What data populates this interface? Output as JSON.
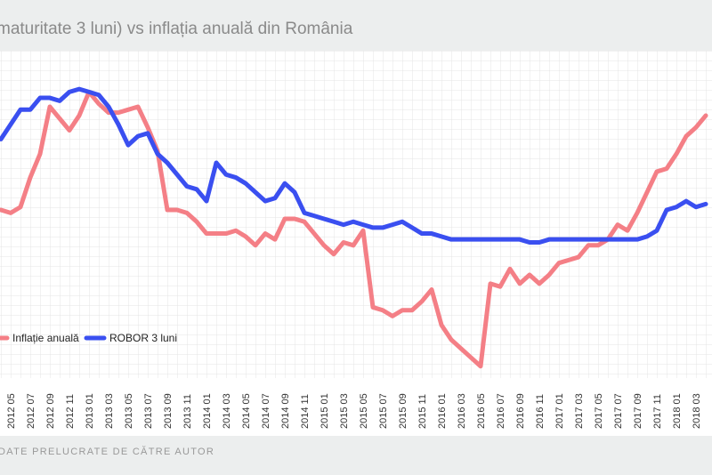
{
  "chart_data": {
    "type": "line",
    "title": "maturitate 3 luni) vs inflația anuală din România",
    "source": "DATE PRELUCRATE DE CĂTRE AUTOR",
    "categories": [
      null,
      "2012 05",
      null,
      "2012 07",
      null,
      "2012 09",
      null,
      "2012 11",
      null,
      "2013 01",
      null,
      "2013 03",
      null,
      "2013 05",
      null,
      "2013 07",
      null,
      "2013 09",
      null,
      "2013 11",
      null,
      "2014 01",
      null,
      "2014 03",
      null,
      "2014 05",
      null,
      "2014 07",
      null,
      "2014 09",
      null,
      "2014 11",
      null,
      "2015 01",
      null,
      "2015 03",
      null,
      "2015 05",
      null,
      "2015 07",
      null,
      "2015 09",
      null,
      "2015 11",
      null,
      "2016 01",
      null,
      "2016 03",
      null,
      "2016 05",
      null,
      "2016 07",
      null,
      "2016 09",
      null,
      "2016 11",
      null,
      "2017 01",
      null,
      "2017 03",
      null,
      "2017 05",
      null,
      "2017 07",
      null,
      "2017 09",
      null,
      "2017 11",
      null,
      "2018 01",
      null,
      "2018 03",
      null
    ],
    "series": [
      {
        "name": "Inflație anuală",
        "color": "#f47f86",
        "values": [
          1.9,
          1.8,
          2.0,
          3.0,
          3.8,
          5.4,
          5.0,
          4.6,
          5.1,
          5.9,
          5.5,
          5.2,
          5.2,
          5.3,
          5.4,
          4.7,
          3.9,
          1.9,
          1.9,
          1.8,
          1.5,
          1.1,
          1.1,
          1.1,
          1.2,
          1.0,
          0.7,
          1.1,
          0.9,
          1.6,
          1.6,
          1.5,
          1.1,
          0.7,
          0.4,
          0.8,
          0.7,
          1.2,
          -1.4,
          -1.5,
          -1.7,
          -1.5,
          -1.5,
          -1.2,
          -0.8,
          -2.0,
          -2.5,
          -2.8,
          -3.1,
          -3.4,
          -0.6,
          -0.7,
          -0.1,
          -0.6,
          -0.3,
          -0.6,
          -0.3,
          0.1,
          0.2,
          0.3,
          0.7,
          0.7,
          0.9,
          1.4,
          1.2,
          1.8,
          2.5,
          3.2,
          3.3,
          3.8,
          4.4,
          4.7,
          5.1
        ]
      },
      {
        "name": "ROBOR 3 luni",
        "color": "#3a4ff0",
        "values": [
          4.3,
          4.8,
          5.3,
          5.3,
          5.7,
          5.7,
          5.6,
          5.9,
          6.0,
          5.9,
          5.8,
          5.4,
          4.8,
          4.1,
          4.4,
          4.5,
          3.8,
          3.5,
          3.1,
          2.7,
          2.6,
          2.2,
          3.5,
          3.1,
          3.0,
          2.8,
          2.5,
          2.2,
          2.3,
          2.8,
          2.5,
          1.8,
          1.7,
          1.6,
          1.5,
          1.4,
          1.5,
          1.4,
          1.3,
          1.3,
          1.4,
          1.5,
          1.3,
          1.1,
          1.1,
          1.0,
          0.9,
          0.9,
          0.9,
          0.9,
          0.9,
          0.9,
          0.9,
          0.9,
          0.8,
          0.8,
          0.9,
          0.9,
          0.9,
          0.9,
          0.9,
          0.9,
          0.9,
          0.9,
          0.9,
          0.9,
          1.0,
          1.2,
          1.9,
          2.0,
          2.2,
          2.0,
          2.1
        ]
      }
    ],
    "ylim": [
      -3.8,
      7.3
    ]
  }
}
